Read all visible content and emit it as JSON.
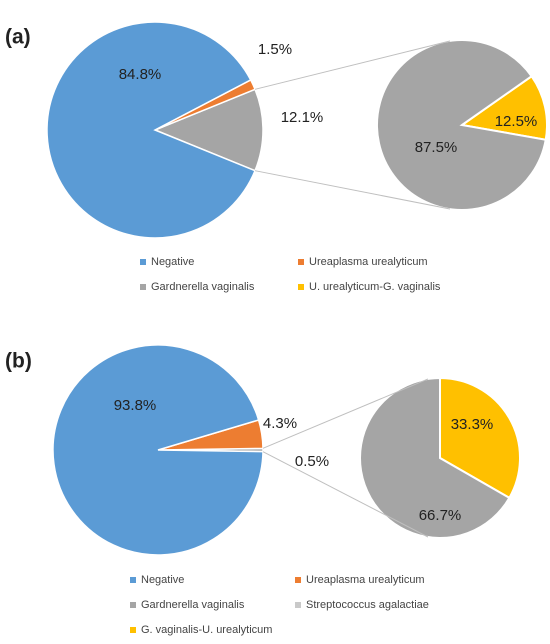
{
  "chart_data": [
    {
      "type": "pie-of-pie",
      "panel_label": "(a)",
      "legend": [
        {
          "name": "Negative",
          "color": "#5b9bd5"
        },
        {
          "name": "Ureaplasma urealyticum",
          "color": "#ed7d31"
        },
        {
          "name": "Gardnerella vaginalis",
          "color": "#a5a5a5"
        },
        {
          "name": "U. urealyticum-G. vaginalis",
          "color": "#ffc000"
        }
      ],
      "main": {
        "values": [
          84.8,
          1.5,
          12.1
        ],
        "value_labels": [
          "84.8%",
          "1.5%",
          "12.1%"
        ],
        "colors": [
          "#5b9bd5",
          "#ed7d31",
          "#a5a5a5"
        ]
      },
      "secondary": {
        "values": [
          87.5,
          12.5
        ],
        "value_labels": [
          "87.5%",
          "12.5%"
        ],
        "colors": [
          "#a5a5a5",
          "#ffc000"
        ]
      }
    },
    {
      "type": "pie-of-pie",
      "panel_label": "(b)",
      "legend": [
        {
          "name": "Negative",
          "color": "#5b9bd5"
        },
        {
          "name": "Ureaplasma urealyticum",
          "color": "#ed7d31"
        },
        {
          "name": "Gardnerella vaginalis",
          "color": "#a5a5a5"
        },
        {
          "name": "Streptococcus agalactiae",
          "color": "#c9c9c9"
        },
        {
          "name": "G. vaginalis-U. urealyticum",
          "color": "#ffc000"
        }
      ],
      "main": {
        "values": [
          93.8,
          4.3,
          0.5
        ],
        "value_labels": [
          "93.8%",
          "4.3%",
          "0.5%"
        ],
        "colors": [
          "#5b9bd5",
          "#ed7d31",
          "#a5a5a5"
        ]
      },
      "secondary": {
        "values": [
          66.7,
          33.3
        ],
        "value_labels": [
          "66.7%",
          "33.3%"
        ],
        "colors": [
          "#a5a5a5",
          "#ffc000"
        ]
      }
    }
  ]
}
